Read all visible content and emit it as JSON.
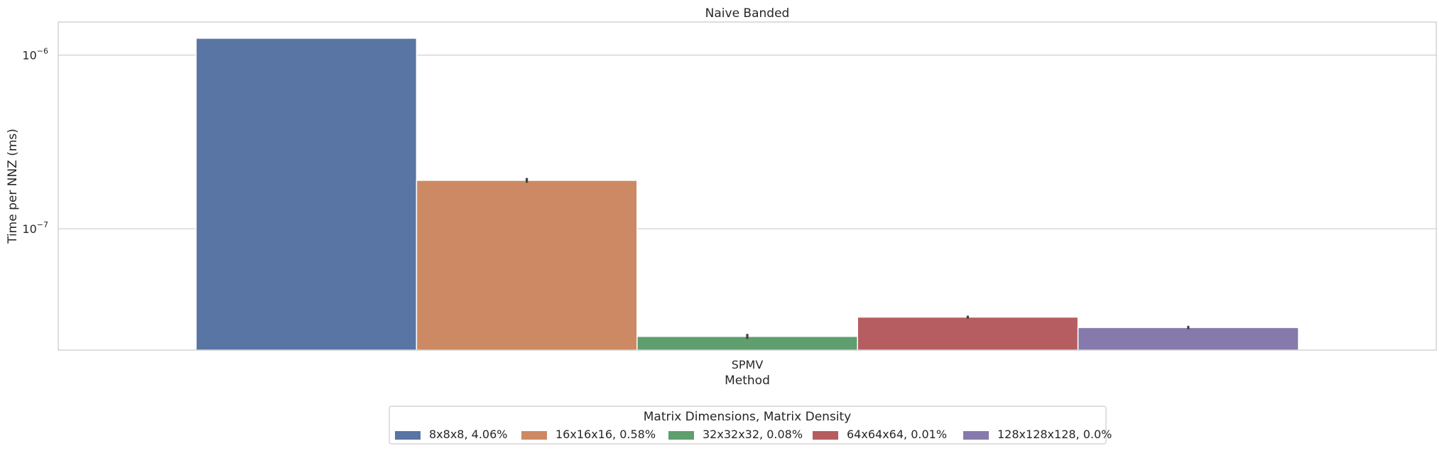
{
  "chart_data": {
    "type": "bar",
    "title": "Naive Banded",
    "xlabel": "Method",
    "ylabel": "Time per NNZ (ms)",
    "yscale": "log",
    "ylim": [
      2e-08,
      1.55e-06
    ],
    "grid": true,
    "categories": [
      "SPMV"
    ],
    "yticks": [
      {
        "value": 1e-06,
        "base": "10",
        "exp": "−6"
      },
      {
        "value": 1e-07,
        "base": "10",
        "exp": "−7"
      }
    ],
    "legend": {
      "title": "Matrix Dimensions, Matrix Density",
      "placement": "bottom-center"
    },
    "series": [
      {
        "name": "8x8x8, 4.06%",
        "values": [
          1.25e-06
        ],
        "err": [
          0
        ],
        "color": "#5875a4"
      },
      {
        "name": "16x16x16, 0.58%",
        "values": [
          1.9e-07
        ],
        "err": [
          6e-09
        ],
        "color": "#cc8963"
      },
      {
        "name": "32x32x32, 0.08%",
        "values": [
          2.4e-08
        ],
        "err": [
          8e-10
        ],
        "color": "#5f9e6e"
      },
      {
        "name": "64x64x64, 0.01%",
        "values": [
          3.1e-08
        ],
        "err": [
          6e-10
        ],
        "color": "#b55d60"
      },
      {
        "name": "128x128x128, 0.0%",
        "values": [
          2.7e-08
        ],
        "err": [
          6e-10
        ],
        "color": "#857aab"
      }
    ]
  }
}
